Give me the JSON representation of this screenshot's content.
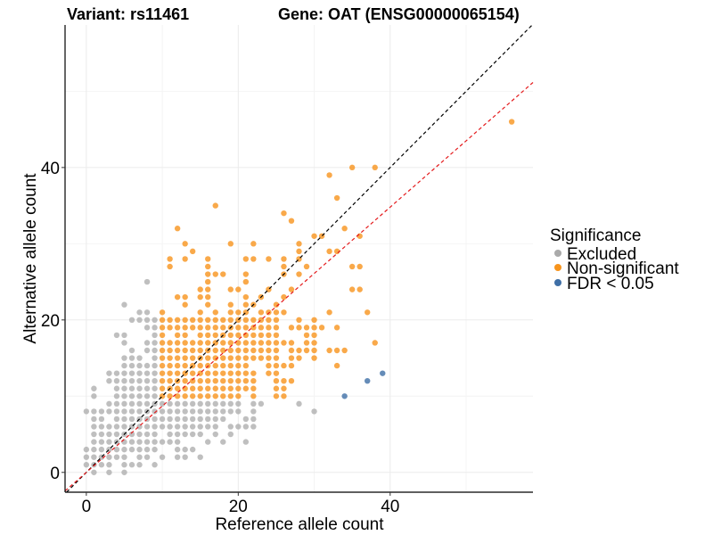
{
  "chart_data": {
    "type": "scatter",
    "title_left": "Variant: rs11461",
    "title_right": "Gene: OAT (ENSG00000065154)",
    "xlabel": "Reference allele count",
    "ylabel": "Alternative allele count",
    "xlim": [
      -2.8,
      58.8
    ],
    "ylim": [
      -2.6,
      58.7
    ],
    "x_ticks": [
      0,
      20,
      40
    ],
    "y_ticks": [
      0,
      20,
      40
    ],
    "x_tick_labels": [
      "0",
      "20",
      "40"
    ],
    "y_tick_labels": [
      "0",
      "20",
      "40"
    ],
    "x_grid_minor": [
      10,
      30,
      50
    ],
    "y_grid_minor": [
      10,
      30,
      50
    ],
    "grid": true,
    "legend": {
      "title": "Significance",
      "placement": "right",
      "entries": [
        {
          "key": "excluded",
          "label": "Excluded",
          "color": "#aaaaaa"
        },
        {
          "key": "nonsig",
          "label": "Non-significant",
          "color": "#f7941d"
        },
        {
          "key": "fdr",
          "label": "FDR < 0.05",
          "color": "#3f6fa6"
        }
      ]
    },
    "reference_lines": [
      {
        "name": "identity",
        "slope": 1.0,
        "intercept": 0,
        "color": "#000000",
        "dash": "dashed"
      },
      {
        "name": "fit",
        "slope": 0.87,
        "intercept": 0,
        "color": "#e41a1c",
        "dash": "dashed"
      }
    ],
    "series": [
      {
        "name": "Excluded",
        "color": "#aaaaaa",
        "rows": {
          "0": [
            "1",
            "3",
            "5"
          ],
          "1": [
            "0-3",
            "5-7",
            "9"
          ],
          "2": [
            "0-5",
            "7",
            "8",
            "10",
            "12",
            "13",
            "15"
          ],
          "3": [
            "0-9",
            "12-14"
          ],
          "4": [
            "1-12",
            "16",
            "18",
            "21"
          ],
          "5": [
            "1-9",
            "11-15",
            "17",
            "19"
          ],
          "6": [
            "1-17",
            "19-22"
          ],
          "7": [
            "1",
            "2",
            "4-18",
            "21",
            "22"
          ],
          "8": [
            "0-20",
            "22",
            "30"
          ],
          "9": [
            "3-20",
            "22",
            "23",
            "28"
          ],
          "10": [
            "1",
            "4-9"
          ],
          "11": [
            "1",
            "4-9"
          ],
          "12": [
            "3-9"
          ],
          "13": [
            "3-9"
          ],
          "14": [
            "5-9"
          ],
          "15": [
            "5-7",
            "9"
          ],
          "16": [
            "6",
            "8",
            "9"
          ],
          "17": [
            "5",
            "8",
            "9"
          ],
          "18": [
            "4",
            "5",
            "9"
          ],
          "19": [
            "8",
            "9"
          ],
          "20": [
            "6-9"
          ],
          "21": [
            "7",
            "8"
          ],
          "22": [
            "5"
          ],
          "25": [
            "8"
          ]
        }
      },
      {
        "name": "Non-significant",
        "color": "#f7941d",
        "rows": {
          "10": [
            "10-20",
            "22",
            "25",
            "26"
          ],
          "11": [
            "10-22",
            "25",
            "26"
          ],
          "12": [
            "10-22",
            "25-27"
          ],
          "13": [
            "10-22",
            "24",
            "25"
          ],
          "14": [
            "10-21",
            "24-27",
            "33"
          ],
          "15": [
            "10-25",
            "27",
            "28",
            "30"
          ],
          "16": [
            "10-25",
            "27-30",
            "32-34"
          ],
          "17": [
            "10-27",
            "29",
            "30",
            "38"
          ],
          "18": [
            "10",
            "12",
            "13",
            "15-25",
            "29",
            "30"
          ],
          "19": [
            "10-25",
            "27-31",
            "33"
          ],
          "20": [
            "10-25",
            "28",
            "30"
          ],
          "21": [
            "10",
            "15",
            "17",
            "19-21",
            "23-26",
            "32",
            "37"
          ],
          "22": [
            "13",
            "16",
            "19",
            "21",
            "22",
            "25"
          ],
          "23": [
            "12",
            "13",
            "15",
            "16",
            "21",
            "23",
            "26"
          ],
          "24": [
            "15",
            "16",
            "19",
            "20",
            "24",
            "27",
            "35",
            "36"
          ],
          "25": [
            "16",
            "21"
          ],
          "26": [
            "16-18",
            "21",
            "26",
            "28"
          ],
          "27": [
            "11",
            "16",
            "26",
            "29",
            "35",
            "36"
          ],
          "28": [
            "11",
            "13",
            "16",
            "21",
            "22",
            "24",
            "26",
            "28"
          ],
          "29": [
            "14",
            "28",
            "32",
            "33"
          ],
          "30": [
            "13",
            "19",
            "22",
            "28"
          ],
          "31": [
            "30",
            "31",
            "36"
          ],
          "32": [
            "12",
            "34"
          ],
          "33": [
            "27"
          ],
          "34": [
            "26"
          ],
          "35": [
            "17"
          ],
          "36": [
            "33"
          ],
          "39": [
            "32"
          ],
          "40": [
            "35",
            "38"
          ],
          "46": [
            "56"
          ]
        }
      },
      {
        "name": "FDR < 0.05",
        "color": "#3f6fa6",
        "points": [
          [
            34,
            10
          ],
          [
            37,
            12
          ],
          [
            39,
            13
          ]
        ]
      }
    ]
  }
}
